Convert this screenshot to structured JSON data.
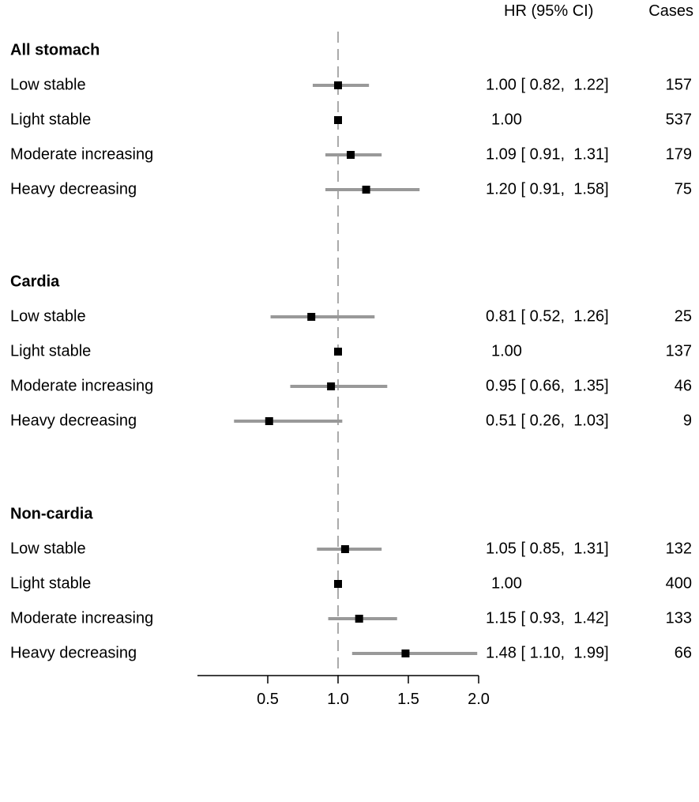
{
  "chart_data": {
    "type": "forest",
    "header": {
      "hr": "HR (95% CI)",
      "cases": "Cases"
    },
    "xlim": [
      0,
      2.0
    ],
    "reference_line": 1.0,
    "xticks": [
      {
        "value": 0.5,
        "label": "0.5"
      },
      {
        "value": 1.0,
        "label": "1.0"
      },
      {
        "value": 1.5,
        "label": "1.5"
      },
      {
        "value": 2.0,
        "label": "2.0"
      }
    ],
    "groups": [
      {
        "name": "All stomach",
        "rows": [
          {
            "label": "Low stable",
            "hr": 1.0,
            "lo": 0.82,
            "hi": 1.22,
            "hr_text": "1.00 [ 0.82,  1.22]",
            "cases": "157"
          },
          {
            "label": "Light stable",
            "hr": 1.0,
            "lo": null,
            "hi": null,
            "hr_text": "1.00",
            "cases": "537"
          },
          {
            "label": "Moderate increasing",
            "hr": 1.09,
            "lo": 0.91,
            "hi": 1.31,
            "hr_text": "1.09 [ 0.91,  1.31]",
            "cases": "179"
          },
          {
            "label": "Heavy decreasing",
            "hr": 1.2,
            "lo": 0.91,
            "hi": 1.58,
            "hr_text": "1.20 [ 0.91,  1.58]",
            "cases": "75"
          }
        ]
      },
      {
        "name": "Cardia",
        "rows": [
          {
            "label": "Low stable",
            "hr": 0.81,
            "lo": 0.52,
            "hi": 1.26,
            "hr_text": "0.81 [ 0.52,  1.26]",
            "cases": "25"
          },
          {
            "label": "Light stable",
            "hr": 1.0,
            "lo": null,
            "hi": null,
            "hr_text": "1.00",
            "cases": "137"
          },
          {
            "label": "Moderate increasing",
            "hr": 0.95,
            "lo": 0.66,
            "hi": 1.35,
            "hr_text": "0.95 [ 0.66,  1.35]",
            "cases": "46"
          },
          {
            "label": "Heavy decreasing",
            "hr": 0.51,
            "lo": 0.26,
            "hi": 1.03,
            "hr_text": "0.51 [ 0.26,  1.03]",
            "cases": "9"
          }
        ]
      },
      {
        "name": "Non-cardia",
        "rows": [
          {
            "label": "Low stable",
            "hr": 1.05,
            "lo": 0.85,
            "hi": 1.31,
            "hr_text": "1.05 [ 0.85,  1.31]",
            "cases": "132"
          },
          {
            "label": "Light stable",
            "hr": 1.0,
            "lo": null,
            "hi": null,
            "hr_text": "1.00",
            "cases": "400"
          },
          {
            "label": "Moderate increasing",
            "hr": 1.15,
            "lo": 0.93,
            "hi": 1.42,
            "hr_text": "1.15 [ 0.93,  1.42]",
            "cases": "133"
          },
          {
            "label": "Heavy decreasing",
            "hr": 1.48,
            "lo": 1.1,
            "hi": 1.99,
            "hr_text": "1.48 [ 1.10,  1.99]",
            "cases": "66"
          }
        ]
      }
    ],
    "colors": {
      "ci_line": "#999999",
      "point": "#000000",
      "ref_line": "#aaaaaa",
      "axis": "#000000"
    }
  }
}
